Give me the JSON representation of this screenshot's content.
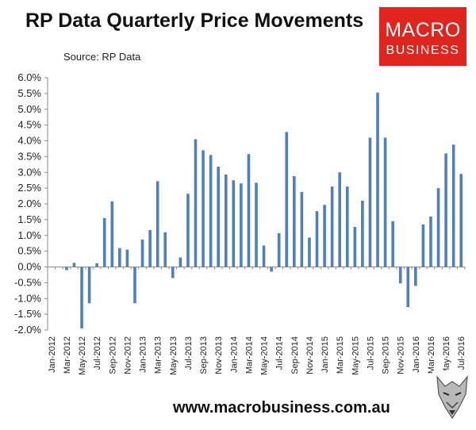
{
  "header": {
    "title": "RP Data Quarterly Price Movements",
    "source": "Source: RP Data"
  },
  "logo": {
    "line1": "MACRO",
    "line2": "BUSINESS",
    "color": "#e0241e"
  },
  "footer": {
    "website": "www.macrobusiness.com.au"
  },
  "chart_data": {
    "type": "bar",
    "title": "RP Data Quarterly Price Movements",
    "xlabel": "",
    "ylabel": "",
    "ylim": [
      -0.02,
      0.06
    ],
    "y_ticks": [
      "6.0%",
      "5.5%",
      "5.0%",
      "4.5%",
      "4.0%",
      "3.5%",
      "3.0%",
      "2.5%",
      "2.0%",
      "1.5%",
      "1.0%",
      "0.5%",
      "0.0%",
      "-0.5%",
      "-1.0%",
      "-1.5%",
      "-2.0%"
    ],
    "x_ticks": [
      "Jan-2012",
      "Mar-2012",
      "May-2012",
      "Jul-2012",
      "Sep-2012",
      "Nov-2012",
      "Jan-2013",
      "Mar-2013",
      "May-2013",
      "Jul-2013",
      "Sep-2013",
      "Nov-2013",
      "Jan-2014",
      "Mar-2014",
      "May-2014",
      "Jul-2014",
      "Sep-2014",
      "Nov-2014",
      "Jan-2015",
      "Mar-2015",
      "May-2015",
      "Jul-2015",
      "Sep-2015",
      "Nov-2015",
      "Jan-2016",
      "Mar-2016",
      "May-2016",
      "Jul-2016"
    ],
    "categories": [
      "Jan-2012",
      "Feb-2012",
      "Mar-2012",
      "Apr-2012",
      "May-2012",
      "Jun-2012",
      "Jul-2012",
      "Aug-2012",
      "Sep-2012",
      "Oct-2012",
      "Nov-2012",
      "Dec-2012",
      "Jan-2013",
      "Feb-2013",
      "Mar-2013",
      "Apr-2013",
      "May-2013",
      "Jun-2013",
      "Jul-2013",
      "Aug-2013",
      "Sep-2013",
      "Oct-2013",
      "Nov-2013",
      "Dec-2013",
      "Jan-2014",
      "Feb-2014",
      "Mar-2014",
      "Apr-2014",
      "May-2014",
      "Jun-2014",
      "Jul-2014",
      "Aug-2014",
      "Sep-2014",
      "Oct-2014",
      "Nov-2014",
      "Dec-2014",
      "Jan-2015",
      "Feb-2015",
      "Mar-2015",
      "Apr-2015",
      "May-2015",
      "Jun-2015",
      "Jul-2015",
      "Aug-2015",
      "Sep-2015",
      "Oct-2015",
      "Nov-2015",
      "Dec-2015",
      "Jan-2016",
      "Feb-2016",
      "Mar-2016",
      "Apr-2016",
      "May-2016",
      "Jun-2016",
      "Jul-2016"
    ],
    "values": [
      0.0,
      0.0,
      -0.001,
      0.0013,
      -0.0195,
      -0.0115,
      0.0012,
      0.0155,
      0.0208,
      0.006,
      0.0055,
      -0.0115,
      0.0087,
      0.0117,
      0.0272,
      0.011,
      -0.0035,
      0.003,
      0.0232,
      0.0405,
      0.037,
      0.0355,
      0.0318,
      0.0293,
      0.0275,
      0.0265,
      0.0358,
      0.0267,
      0.0068,
      -0.0015,
      0.0107,
      0.0428,
      0.0288,
      0.0238,
      0.0093,
      0.0177,
      0.0197,
      0.0255,
      0.03,
      0.0255,
      0.0127,
      0.021,
      0.041,
      0.0553,
      0.041,
      0.0145,
      -0.0052,
      -0.0127,
      -0.006,
      0.0135,
      0.016,
      0.025,
      0.036,
      0.0388,
      0.0295
    ],
    "bar_color": "#4f7fbc",
    "grid": false,
    "legend": "none"
  }
}
